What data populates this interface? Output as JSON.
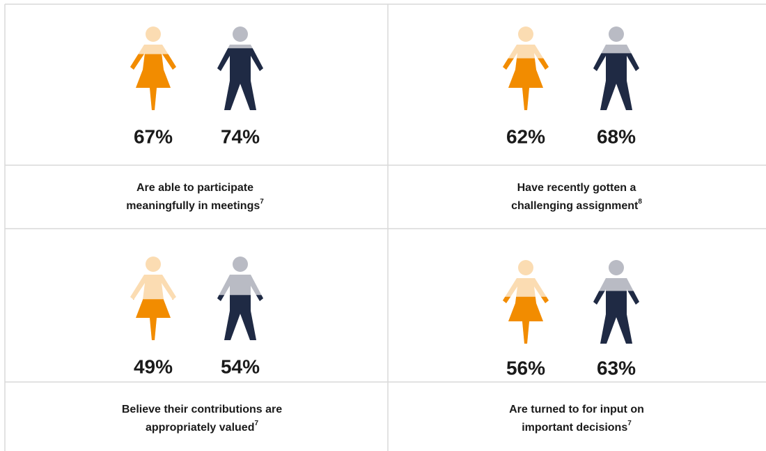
{
  "chart_data": [
    {
      "type": "pictograph",
      "values": [
        67,
        74
      ],
      "value_labels": [
        "67%",
        "74%"
      ],
      "ylim": [
        0,
        100
      ],
      "colors": [
        "#f28c00",
        "#1f2a44"
      ],
      "light_colors": [
        "#fbdcb2",
        "#b9bbc4"
      ],
      "caption": [
        "Are able to participate",
        "meaningfully in meetings"
      ],
      "footnote": "7"
    },
    {
      "type": "pictograph",
      "values": [
        62,
        68
      ],
      "value_labels": [
        "62%",
        "68%"
      ],
      "ylim": [
        0,
        100
      ],
      "colors": [
        "#f28c00",
        "#1f2a44"
      ],
      "light_colors": [
        "#fbdcb2",
        "#b9bbc4"
      ],
      "caption": [
        "Have recently gotten a",
        "challenging assignment"
      ],
      "footnote": "8"
    },
    {
      "type": "pictograph",
      "values": [
        49,
        54
      ],
      "value_labels": [
        "49%",
        "54%"
      ],
      "ylim": [
        0,
        100
      ],
      "colors": [
        "#f28c00",
        "#1f2a44"
      ],
      "light_colors": [
        "#fbdcb2",
        "#b9bbc4"
      ],
      "caption": [
        "Believe their contributions are",
        "appropriately valued"
      ],
      "footnote": "7"
    },
    {
      "type": "pictograph",
      "values": [
        56,
        63
      ],
      "value_labels": [
        "56%",
        "63%"
      ],
      "ylim": [
        0,
        100
      ],
      "colors": [
        "#f28c00",
        "#1f2a44"
      ],
      "light_colors": [
        "#fbdcb2",
        "#b9bbc4"
      ],
      "caption": [
        "Are turned to for input on",
        "important decisions"
      ],
      "footnote": "7"
    }
  ]
}
